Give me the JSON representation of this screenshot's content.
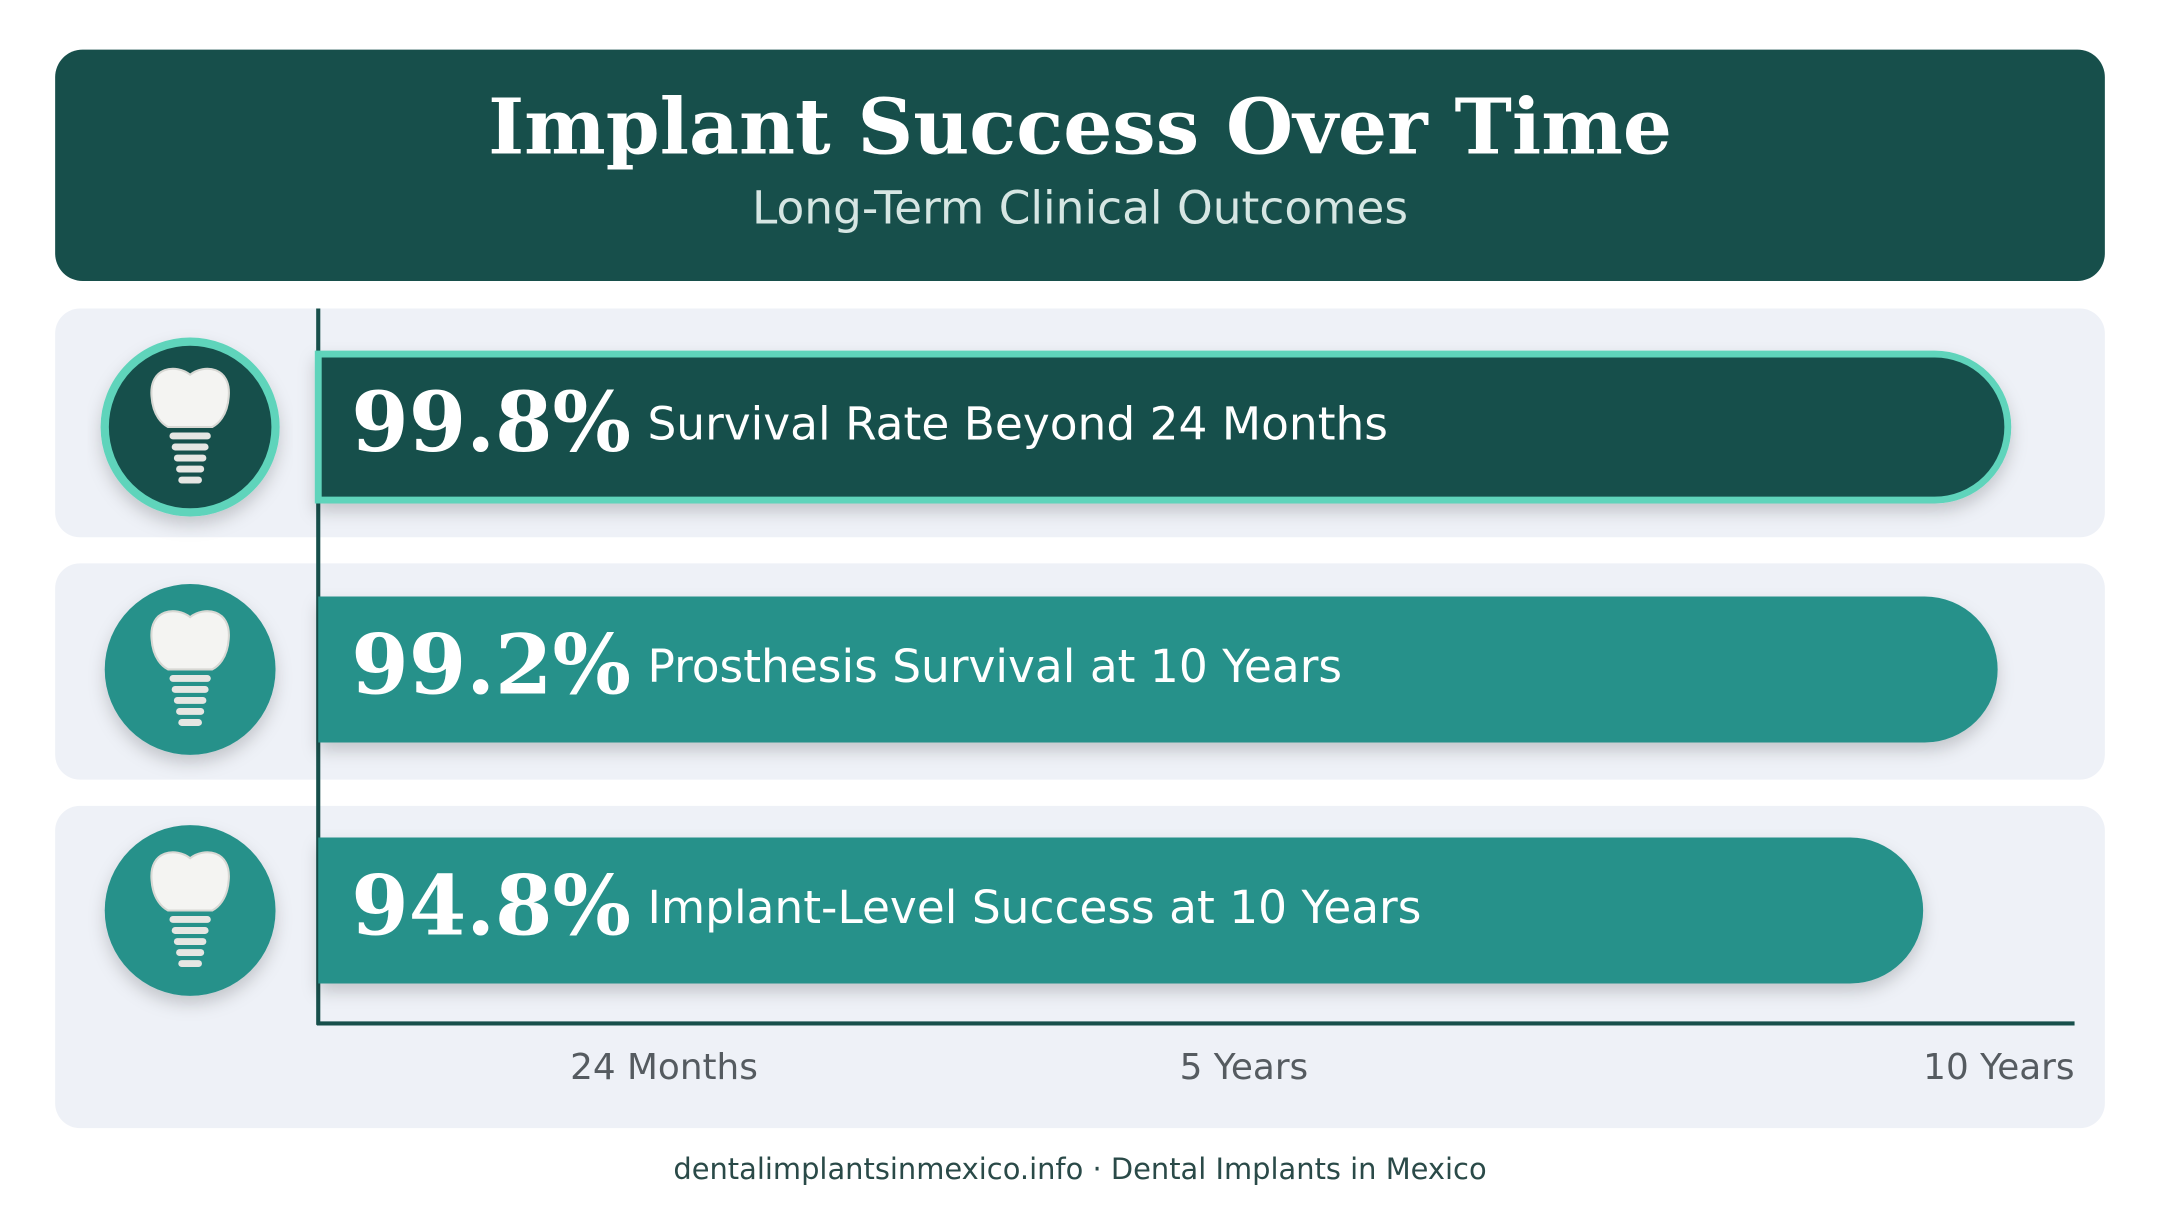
{
  "chart_data": {
    "type": "bar",
    "orientation": "horizontal",
    "title": "Implant Success Over Time",
    "subtitle": "Long-Term Clinical Outcomes",
    "categories": [
      "Survival Rate Beyond 24 Months",
      "Prosthesis Survival at 10 Years",
      "Implant-Level Success at 10 Years"
    ],
    "values": [
      99.8,
      99.2,
      94.8
    ],
    "value_labels": [
      "99.8%",
      "99.2%",
      "94.8%"
    ],
    "colors": [
      "#174f4b",
      "#25918a",
      "#25918a"
    ],
    "outlines": [
      "#5fd4bb",
      null,
      null
    ],
    "xlim": [
      0,
      100
    ],
    "time_labels": [
      "24 Months",
      "5 Years",
      "10 Years"
    ],
    "footer": "dentalimplantsinmexico.info · Dental Implants in Mexico"
  }
}
